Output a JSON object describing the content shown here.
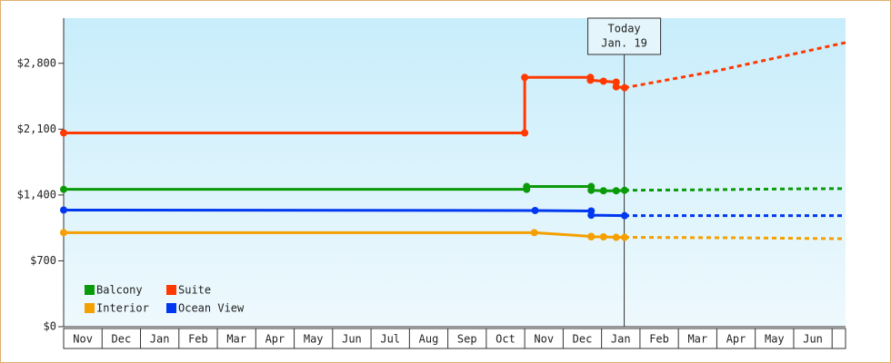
{
  "chart_data": {
    "type": "line",
    "ylim": [
      0,
      3280
    ],
    "yticks": [
      {
        "value": 0,
        "label": "$0"
      },
      {
        "value": 700,
        "label": "$700"
      },
      {
        "value": 1400,
        "label": "$1,400"
      },
      {
        "value": 2100,
        "label": "$2,100"
      },
      {
        "value": 2800,
        "label": "$2,800"
      }
    ],
    "xlim": [
      0,
      20.35
    ],
    "xticks": [
      {
        "value": 0.5,
        "label": "Nov"
      },
      {
        "value": 1.5,
        "label": "Dec"
      },
      {
        "value": 2.5,
        "label": "Jan"
      },
      {
        "value": 3.5,
        "label": "Feb"
      },
      {
        "value": 4.5,
        "label": "Mar"
      },
      {
        "value": 5.5,
        "label": "Apr"
      },
      {
        "value": 6.5,
        "label": "May"
      },
      {
        "value": 7.5,
        "label": "Jun"
      },
      {
        "value": 8.5,
        "label": "Jul"
      },
      {
        "value": 9.5,
        "label": "Aug"
      },
      {
        "value": 10.5,
        "label": "Sep"
      },
      {
        "value": 11.5,
        "label": "Oct"
      },
      {
        "value": 12.5,
        "label": "Nov"
      },
      {
        "value": 13.5,
        "label": "Dec"
      },
      {
        "value": 14.5,
        "label": "Jan"
      },
      {
        "value": 15.5,
        "label": "Feb"
      },
      {
        "value": 16.5,
        "label": "Mar"
      },
      {
        "value": 17.5,
        "label": "Apr"
      },
      {
        "value": 18.5,
        "label": "May"
      },
      {
        "value": 19.5,
        "label": "Jun"
      }
    ],
    "annotation": {
      "x": 14.59,
      "lines": [
        "Today",
        "Jan. 19"
      ]
    },
    "series": [
      {
        "name": "Balcony",
        "color": "#0a9a0a",
        "x": [
          0,
          12.05,
          12.05,
          13.73,
          13.73,
          14.05,
          14.38,
          14.6
        ],
        "values": [
          1460,
          1460,
          1490,
          1490,
          1450,
          1445,
          1445,
          1450
        ],
        "forecast_x": [
          14.6,
          16.6,
          18.9,
          20.35
        ],
        "forecast_values": [
          1450,
          1455,
          1465,
          1468
        ]
      },
      {
        "name": "Suite",
        "color": "#ff3a00",
        "x": [
          0,
          12.0,
          12.0,
          13.71,
          13.71,
          14.05,
          14.38,
          14.38,
          14.6
        ],
        "values": [
          2060,
          2060,
          2650,
          2650,
          2620,
          2610,
          2600,
          2550,
          2540
        ],
        "forecast_x": [
          14.6,
          17.0,
          20.35
        ],
        "forecast_values": [
          2540,
          2720,
          3020
        ]
      },
      {
        "name": "Interior",
        "color": "#f5a000",
        "x": [
          0,
          12.25,
          13.73,
          13.73,
          14.05,
          14.38,
          14.6
        ],
        "values": [
          1000,
          1000,
          960,
          955,
          955,
          950,
          950
        ],
        "forecast_x": [
          14.6,
          17.5,
          20.35
        ],
        "forecast_values": [
          950,
          945,
          935
        ]
      },
      {
        "name": "Ocean View",
        "color": "#0038f0",
        "x": [
          0,
          12.27,
          13.73,
          13.73,
          14.6
        ],
        "values": [
          1240,
          1235,
          1230,
          1185,
          1180
        ],
        "forecast_x": [
          14.6,
          20.35
        ],
        "forecast_values": [
          1180,
          1180
        ]
      }
    ]
  }
}
